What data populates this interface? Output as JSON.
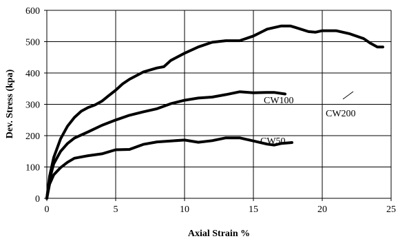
{
  "chart_data": {
    "type": "line",
    "xlabel": "Axial Strain %",
    "ylabel": "Dev. Stress (kpa)",
    "xlim": [
      0,
      25
    ],
    "ylim": [
      0,
      600
    ],
    "x_ticks": [
      0,
      5,
      10,
      15,
      20,
      25
    ],
    "y_ticks": [
      0,
      100,
      200,
      300,
      400,
      500,
      600
    ],
    "grid": "vertical and horizontal major gridlines",
    "legend": "none; series labelled directly on the plot",
    "series": [
      {
        "name": "CW200",
        "points": [
          [
            0,
            0
          ],
          [
            0.2,
            70
          ],
          [
            0.5,
            130
          ],
          [
            1,
            190
          ],
          [
            1.5,
            230
          ],
          [
            2,
            258
          ],
          [
            2.5,
            278
          ],
          [
            3,
            290
          ],
          [
            3.5,
            298
          ],
          [
            4,
            310
          ],
          [
            4.5,
            328
          ],
          [
            5,
            345
          ],
          [
            5.5,
            365
          ],
          [
            6,
            380
          ],
          [
            7,
            403
          ],
          [
            8,
            416
          ],
          [
            8.5,
            420
          ],
          [
            9,
            440
          ],
          [
            10,
            463
          ],
          [
            11,
            483
          ],
          [
            12,
            498
          ],
          [
            13,
            503
          ],
          [
            14,
            503
          ],
          [
            15,
            518
          ],
          [
            16,
            540
          ],
          [
            17,
            550
          ],
          [
            17.7,
            550
          ],
          [
            18,
            546
          ],
          [
            19,
            532
          ],
          [
            19.5,
            530
          ],
          [
            20,
            535
          ],
          [
            21,
            535
          ],
          [
            22,
            525
          ],
          [
            23,
            510
          ],
          [
            23.5,
            495
          ],
          [
            24,
            483
          ],
          [
            24.4,
            483
          ]
        ]
      },
      {
        "name": "CW100",
        "points": [
          [
            0,
            0
          ],
          [
            0.2,
            60
          ],
          [
            0.5,
            110
          ],
          [
            1,
            150
          ],
          [
            1.5,
            175
          ],
          [
            2,
            192
          ],
          [
            3,
            212
          ],
          [
            4,
            233
          ],
          [
            5,
            250
          ],
          [
            6,
            265
          ],
          [
            7,
            276
          ],
          [
            8,
            286
          ],
          [
            9,
            302
          ],
          [
            10,
            313
          ],
          [
            11,
            320
          ],
          [
            12,
            323
          ],
          [
            13,
            331
          ],
          [
            14,
            340
          ],
          [
            15,
            337
          ],
          [
            16,
            338
          ],
          [
            16.5,
            338
          ],
          [
            17.3,
            333
          ]
        ]
      },
      {
        "name": "CW50",
        "points": [
          [
            0,
            0
          ],
          [
            0.2,
            45
          ],
          [
            0.5,
            75
          ],
          [
            1,
            98
          ],
          [
            1.5,
            115
          ],
          [
            2,
            128
          ],
          [
            3,
            136
          ],
          [
            4,
            142
          ],
          [
            5,
            155
          ],
          [
            6,
            156
          ],
          [
            7,
            172
          ],
          [
            8,
            180
          ],
          [
            9,
            183
          ],
          [
            10,
            186
          ],
          [
            11,
            179
          ],
          [
            12,
            184
          ],
          [
            13,
            193
          ],
          [
            14,
            193
          ],
          [
            15,
            183
          ],
          [
            16,
            173
          ],
          [
            16.5,
            170
          ],
          [
            17,
            175
          ],
          [
            17.8,
            178
          ]
        ]
      }
    ]
  },
  "colors": {
    "axes": "#000000",
    "series": "#000000",
    "background": "#ffffff"
  }
}
